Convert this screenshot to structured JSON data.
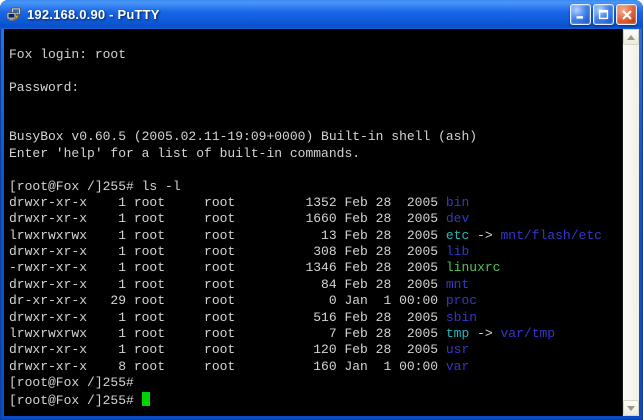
{
  "window": {
    "title": "192.168.0.90 - PuTTY",
    "icons": {
      "system": "putty-icon",
      "minimize": "minimize-icon",
      "maximize": "maximize-icon",
      "close": "close-icon",
      "scroll_up": "chevron-up-icon",
      "scroll_down": "chevron-down-icon"
    }
  },
  "terminal": {
    "colors": {
      "background": "#000000",
      "foreground": "#d4d4d4",
      "blue": "#3636cc",
      "cyan": "#1fb8b8",
      "green": "#4fc74f",
      "cursor": "#00d400"
    },
    "prompt": "[root@Fox /]255#",
    "screen": [
      {
        "t": ""
      },
      {
        "t": "Fox login: root"
      },
      {
        "t": ""
      },
      {
        "t": "Password:"
      },
      {
        "t": ""
      },
      {
        "t": ""
      },
      {
        "t": "BusyBox v0.60.5 (2005.02.11-19:09+0000) Built-in shell (ash)"
      },
      {
        "t": "Enter 'help' for a list of built-in commands."
      },
      {
        "t": ""
      },
      {
        "t": "[root@Fox /]255# ls -l"
      },
      {
        "ls": {
          "perms": "drwxr-xr-x",
          "links": "1",
          "owner": "root",
          "group": "root",
          "size": "1352",
          "date": "Feb 28  2005",
          "name": "bin",
          "name_color": "blue"
        }
      },
      {
        "ls": {
          "perms": "drwxr-xr-x",
          "links": "1",
          "owner": "root",
          "group": "root",
          "size": "1660",
          "date": "Feb 28  2005",
          "name": "dev",
          "name_color": "blue"
        }
      },
      {
        "ls": {
          "perms": "lrwxrwxrwx",
          "links": "1",
          "owner": "root",
          "group": "root",
          "size": "13",
          "date": "Feb 28  2005",
          "name": "etc",
          "name_color": "cyan",
          "arrow": "->",
          "target": "mnt/flash/etc",
          "target_color": "blue"
        }
      },
      {
        "ls": {
          "perms": "drwxr-xr-x",
          "links": "1",
          "owner": "root",
          "group": "root",
          "size": "308",
          "date": "Feb 28  2005",
          "name": "lib",
          "name_color": "blue"
        }
      },
      {
        "ls": {
          "perms": "-rwxr-xr-x",
          "links": "1",
          "owner": "root",
          "group": "root",
          "size": "1346",
          "date": "Feb 28  2005",
          "name": "linuxrc",
          "name_color": "green"
        }
      },
      {
        "ls": {
          "perms": "drwxr-xr-x",
          "links": "1",
          "owner": "root",
          "group": "root",
          "size": "84",
          "date": "Feb 28  2005",
          "name": "mnt",
          "name_color": "blue"
        }
      },
      {
        "ls": {
          "perms": "dr-xr-xr-x",
          "links": "29",
          "owner": "root",
          "group": "root",
          "size": "0",
          "date": "Jan  1 00:00",
          "name": "proc",
          "name_color": "blue"
        }
      },
      {
        "ls": {
          "perms": "drwxr-xr-x",
          "links": "1",
          "owner": "root",
          "group": "root",
          "size": "516",
          "date": "Feb 28  2005",
          "name": "sbin",
          "name_color": "blue"
        }
      },
      {
        "ls": {
          "perms": "lrwxrwxrwx",
          "links": "1",
          "owner": "root",
          "group": "root",
          "size": "7",
          "date": "Feb 28  2005",
          "name": "tmp",
          "name_color": "cyan",
          "arrow": "->",
          "target": "var/tmp",
          "target_color": "blue"
        }
      },
      {
        "ls": {
          "perms": "drwxr-xr-x",
          "links": "1",
          "owner": "root",
          "group": "root",
          "size": "120",
          "date": "Feb 28  2005",
          "name": "usr",
          "name_color": "blue"
        }
      },
      {
        "ls": {
          "perms": "drwxr-xr-x",
          "links": "8",
          "owner": "root",
          "group": "root",
          "size": "160",
          "date": "Jan  1 00:00",
          "name": "var",
          "name_color": "blue"
        }
      },
      {
        "t": "[root@Fox /]255#"
      },
      {
        "t": "[root@Fox /]255# ",
        "cursor": true
      }
    ]
  }
}
